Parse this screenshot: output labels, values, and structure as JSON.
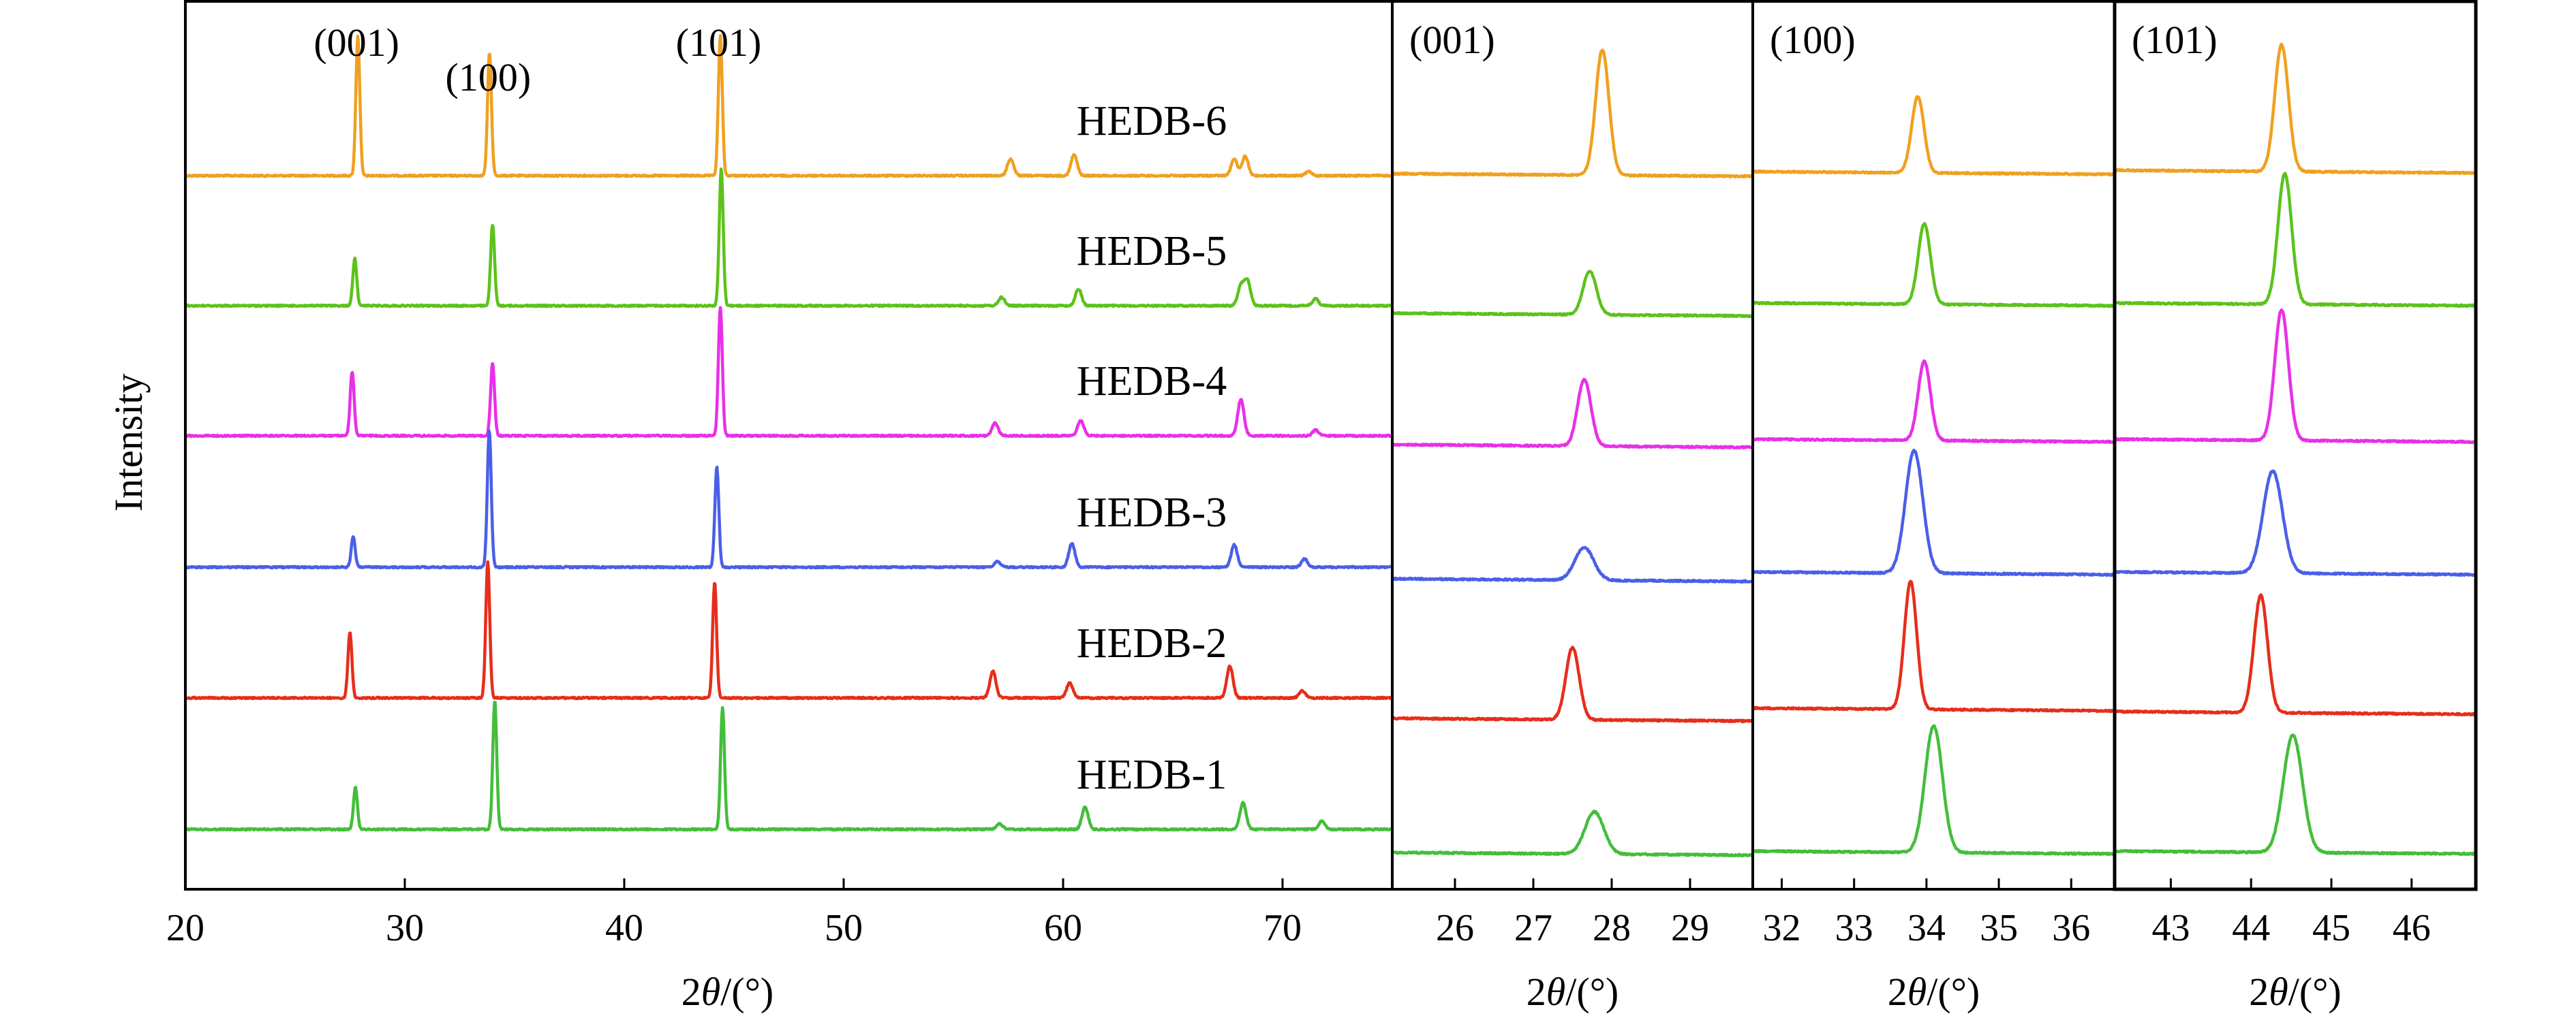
{
  "chart_data": {
    "type": "line",
    "ylabel": "Intensity",
    "xlabel_prefix": "2",
    "xlabel_theta": "θ",
    "xlabel_suffix": "/(°)",
    "colors": {
      "HEDB-6": "#F0A020",
      "HEDB-5": "#5CC21C",
      "HEDB-4": "#E830E8",
      "HEDB-3": "#4A5FE8",
      "HEDB-2": "#E62E1B",
      "HEDB-1": "#43BE3A"
    },
    "samples": [
      "HEDB-6",
      "HEDB-5",
      "HEDB-4",
      "HEDB-3",
      "HEDB-2",
      "HEDB-1"
    ],
    "panels": [
      {
        "xlim": [
          20,
          75
        ],
        "ticks": [
          20,
          30,
          40,
          50,
          60,
          70
        ],
        "tick_labels": [
          "20",
          "30",
          "40",
          "50",
          "60",
          "70"
        ],
        "peak_labels": [
          {
            "x": 27.8,
            "text": "(001)"
          },
          {
            "x": 33.8,
            "text": "(100)"
          },
          {
            "x": 44.3,
            "text": "(101)"
          }
        ],
        "series": [
          {
            "name": "HEDB-6",
            "peaks": [
              [
                27.86,
                1.0
              ],
              [
                33.86,
                0.88
              ],
              [
                44.38,
                1.0
              ],
              [
                57.6,
                0.12
              ],
              [
                60.5,
                0.15
              ],
              [
                67.8,
                0.12
              ],
              [
                68.3,
                0.14
              ],
              [
                71.2,
                0.03
              ]
            ]
          },
          {
            "name": "HEDB-5",
            "peaks": [
              [
                27.72,
                0.34
              ],
              [
                34.0,
                0.58
              ],
              [
                44.42,
                0.98
              ],
              [
                57.2,
                0.06
              ],
              [
                60.7,
                0.12
              ],
              [
                68.1,
                0.14
              ],
              [
                68.4,
                0.18
              ],
              [
                71.5,
                0.05
              ]
            ]
          },
          {
            "name": "HEDB-4",
            "peaks": [
              [
                27.6,
                0.46
              ],
              [
                34.0,
                0.52
              ],
              [
                44.38,
                0.92
              ],
              [
                56.9,
                0.09
              ],
              [
                60.8,
                0.11
              ],
              [
                68.1,
                0.26
              ],
              [
                71.5,
                0.04
              ]
            ]
          },
          {
            "name": "HEDB-3",
            "peaks": [
              [
                27.65,
                0.22
              ],
              [
                33.85,
                0.98
              ],
              [
                44.22,
                0.72
              ],
              [
                57.0,
                0.04
              ],
              [
                60.4,
                0.17
              ],
              [
                67.8,
                0.16
              ],
              [
                71.0,
                0.06
              ]
            ]
          },
          {
            "name": "HEDB-2",
            "peaks": [
              [
                27.5,
                0.47
              ],
              [
                33.78,
                0.98
              ],
              [
                44.12,
                0.83
              ],
              [
                56.8,
                0.19
              ],
              [
                60.3,
                0.11
              ],
              [
                67.6,
                0.23
              ],
              [
                70.9,
                0.05
              ]
            ]
          },
          {
            "name": "HEDB-1",
            "peaks": [
              [
                27.75,
                0.3
              ],
              [
                34.1,
                0.92
              ],
              [
                44.48,
                0.87
              ],
              [
                57.1,
                0.04
              ],
              [
                61.0,
                0.16
              ],
              [
                68.2,
                0.19
              ],
              [
                71.8,
                0.06
              ]
            ]
          }
        ]
      },
      {
        "xlim": [
          25.2,
          29.8
        ],
        "ticks": [
          26,
          27,
          28,
          29
        ],
        "tick_labels": [
          "26",
          "27",
          "28",
          "29"
        ],
        "peak_label": "(001)",
        "series": [
          {
            "name": "HEDB-6",
            "center": 27.88,
            "height": 0.92
          },
          {
            "name": "HEDB-5",
            "center": 27.72,
            "height": 0.32
          },
          {
            "name": "HEDB-4",
            "center": 27.65,
            "height": 0.49
          },
          {
            "name": "HEDB-3",
            "center": 27.65,
            "height": 0.24
          },
          {
            "name": "HEDB-2",
            "center": 27.5,
            "height": 0.53
          },
          {
            "name": "HEDB-1",
            "center": 27.78,
            "height": 0.31
          }
        ]
      },
      {
        "xlim": [
          31.6,
          36.6
        ],
        "ticks": [
          32,
          33,
          34,
          35,
          36
        ],
        "tick_labels": [
          "32",
          "33",
          "34",
          "35",
          "36"
        ],
        "peak_label": "(100)",
        "series": [
          {
            "name": "HEDB-6",
            "center": 33.88,
            "height": 0.56
          },
          {
            "name": "HEDB-5",
            "center": 33.97,
            "height": 0.59
          },
          {
            "name": "HEDB-4",
            "center": 33.97,
            "height": 0.58
          },
          {
            "name": "HEDB-3",
            "center": 33.83,
            "height": 0.9
          },
          {
            "name": "HEDB-2",
            "center": 33.78,
            "height": 0.94
          },
          {
            "name": "HEDB-1",
            "center": 34.1,
            "height": 0.93
          }
        ]
      },
      {
        "xlim": [
          42.3,
          46.8
        ],
        "ticks": [
          43,
          44,
          45,
          46
        ],
        "tick_labels": [
          "43",
          "44",
          "45",
          "46"
        ],
        "peak_label": "(101)",
        "series": [
          {
            "name": "HEDB-6",
            "center": 44.38,
            "height": 0.93
          },
          {
            "name": "HEDB-5",
            "center": 44.42,
            "height": 0.96
          },
          {
            "name": "HEDB-4",
            "center": 44.38,
            "height": 0.96
          },
          {
            "name": "HEDB-3",
            "center": 44.27,
            "height": 0.75
          },
          {
            "name": "HEDB-2",
            "center": 44.12,
            "height": 0.86
          },
          {
            "name": "HEDB-1",
            "center": 44.52,
            "height": 0.86
          }
        ]
      }
    ]
  }
}
